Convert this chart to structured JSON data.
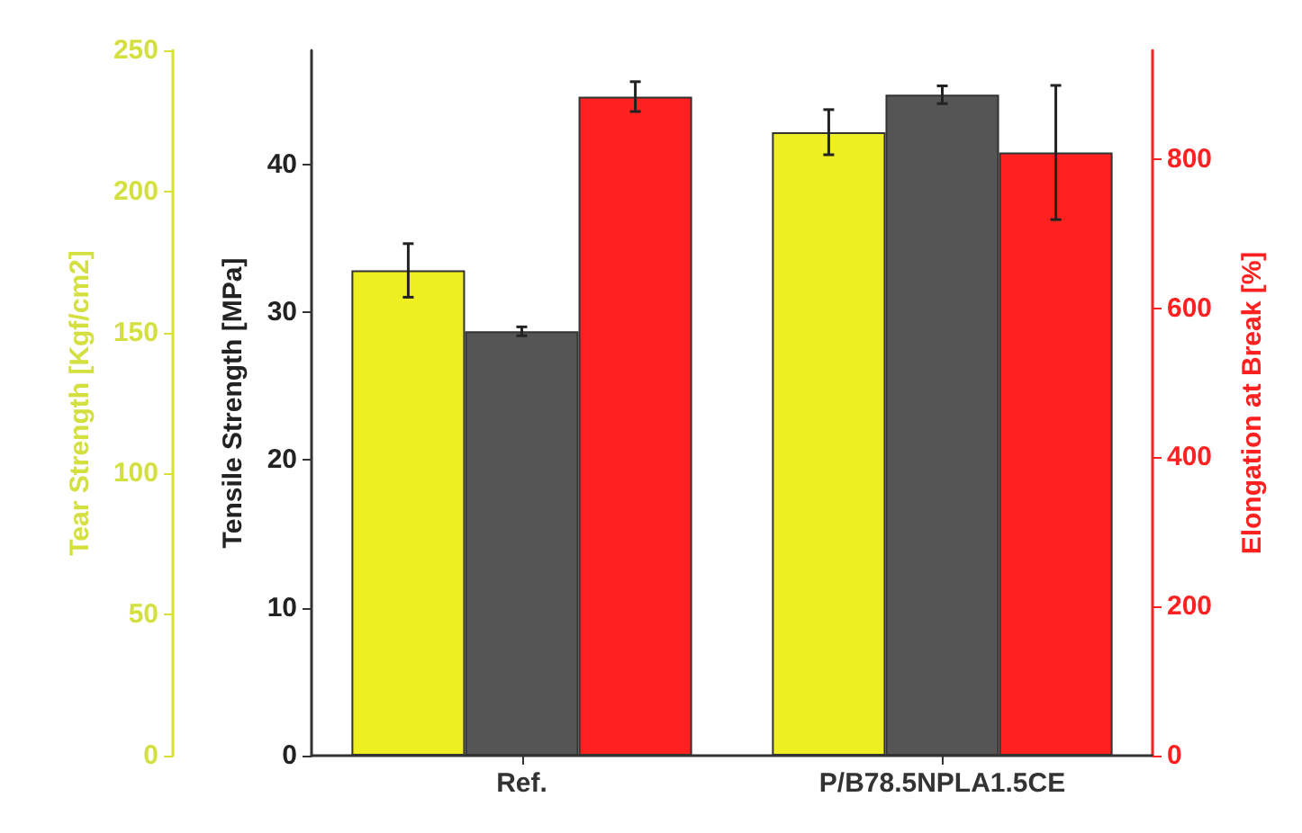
{
  "chart_data": {
    "type": "bar",
    "categories": [
      "Ref.",
      "P/B78.5NPLA1.5CE"
    ],
    "series": [
      {
        "color": "#eeee22",
        "values": [
          172,
          221
        ],
        "errors": [
          9.5,
          8
        ],
        "axis": "y"
      },
      {
        "color": "#555555",
        "values": [
          28.7,
          44.7
        ],
        "errors": [
          0.3,
          0.6
        ],
        "axis": "y2"
      },
      {
        "color": "#ff2020",
        "values": [
          884,
          809
        ],
        "errors": [
          20,
          90
        ],
        "axis": "y3"
      }
    ],
    "ylabel": "Tear Strength [Kgf/cm2]",
    "ylim": [
      0,
      250
    ],
    "yticks": [
      0,
      50,
      100,
      150,
      200,
      250
    ],
    "y2label": "Tensile Strength [MPa]",
    "y2lim": [
      0,
      47.7
    ],
    "y2ticks": [
      0,
      10,
      20,
      30,
      40
    ],
    "y3label": "Elongation at Break [%]",
    "y3lim": [
      0,
      946
    ],
    "y3ticks": [
      0,
      200,
      400,
      600,
      800
    ]
  }
}
